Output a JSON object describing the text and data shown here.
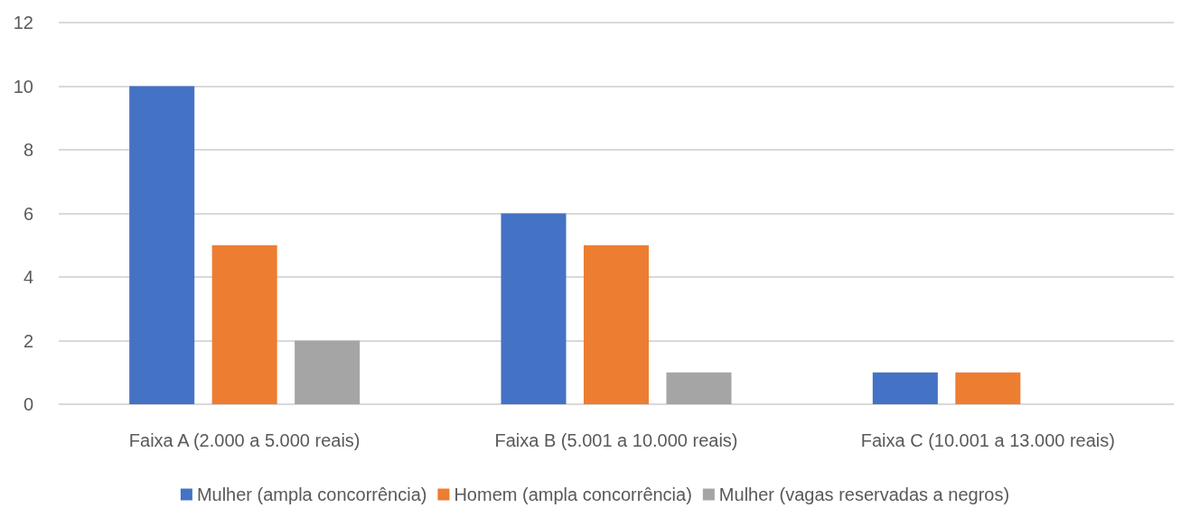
{
  "chart_data": {
    "type": "bar",
    "categories": [
      "Faixa A (2.000 a 5.000 reais)",
      "Faixa B (5.001 a 10.000 reais)",
      "Faixa C (10.001 a 13.000 reais)"
    ],
    "series": [
      {
        "name": "Mulher (ampla concorrência)",
        "color": "#4472c4",
        "values": [
          10,
          6,
          1
        ]
      },
      {
        "name": "Homem (ampla concorrência)",
        "color": "#ed7d31",
        "values": [
          5,
          5,
          1
        ]
      },
      {
        "name": "Mulher (vagas reservadas a negros)",
        "color": "#a5a5a5",
        "values": [
          2,
          1,
          0
        ]
      }
    ],
    "ylim": [
      0,
      12
    ],
    "yticks": [
      0,
      2,
      4,
      6,
      8,
      10,
      12
    ],
    "grid": "y",
    "legend": "bottom"
  }
}
